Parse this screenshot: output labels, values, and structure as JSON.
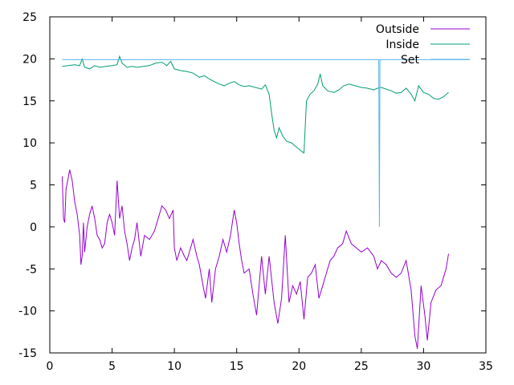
{
  "chart_data": {
    "type": "line",
    "xlim": [
      0,
      35
    ],
    "ylim": [
      -15,
      25
    ],
    "xticks": [
      0,
      5,
      10,
      15,
      20,
      25,
      30,
      35
    ],
    "yticks": [
      -15,
      -10,
      -5,
      0,
      5,
      10,
      15,
      20,
      25
    ],
    "grid": false,
    "legend_position": "top-right",
    "series": [
      {
        "name": "Outside",
        "color": "#9400d3",
        "points": [
          [
            1.0,
            6.0
          ],
          [
            1.1,
            1.0
          ],
          [
            1.2,
            0.5
          ],
          [
            1.3,
            4.5
          ],
          [
            1.5,
            6.0
          ],
          [
            1.6,
            6.8
          ],
          [
            1.8,
            5.5
          ],
          [
            2.0,
            3.0
          ],
          [
            2.2,
            1.5
          ],
          [
            2.4,
            -1.0
          ],
          [
            2.5,
            -4.5
          ],
          [
            2.6,
            -3.5
          ],
          [
            2.7,
            0.5
          ],
          [
            2.8,
            -3.0
          ],
          [
            3.0,
            0.0
          ],
          [
            3.2,
            1.5
          ],
          [
            3.4,
            2.5
          ],
          [
            3.6,
            1.0
          ],
          [
            3.8,
            -1.0
          ],
          [
            4.0,
            -1.5
          ],
          [
            4.2,
            -2.5
          ],
          [
            4.4,
            -2.0
          ],
          [
            4.6,
            0.5
          ],
          [
            4.8,
            1.5
          ],
          [
            5.0,
            0.5
          ],
          [
            5.2,
            -1.0
          ],
          [
            5.4,
            5.5
          ],
          [
            5.6,
            1.0
          ],
          [
            5.8,
            2.5
          ],
          [
            6.0,
            -0.5
          ],
          [
            6.2,
            -2.0
          ],
          [
            6.4,
            -4.0
          ],
          [
            6.6,
            -2.5
          ],
          [
            6.8,
            -1.5
          ],
          [
            7.0,
            0.5
          ],
          [
            7.3,
            -3.5
          ],
          [
            7.6,
            -1.0
          ],
          [
            8.0,
            -1.5
          ],
          [
            8.4,
            -0.5
          ],
          [
            8.8,
            1.5
          ],
          [
            9.0,
            2.5
          ],
          [
            9.3,
            2.0
          ],
          [
            9.6,
            1.0
          ],
          [
            9.9,
            2.0
          ],
          [
            10.0,
            -2.5
          ],
          [
            10.2,
            -4.0
          ],
          [
            10.5,
            -2.5
          ],
          [
            10.8,
            -3.5
          ],
          [
            11.0,
            -4.0
          ],
          [
            11.3,
            -2.5
          ],
          [
            11.5,
            -1.5
          ],
          [
            11.8,
            -3.5
          ],
          [
            12.0,
            -4.5
          ],
          [
            12.3,
            -7.0
          ],
          [
            12.5,
            -8.5
          ],
          [
            12.8,
            -5.0
          ],
          [
            13.0,
            -9.0
          ],
          [
            13.3,
            -5.0
          ],
          [
            13.6,
            -3.5
          ],
          [
            13.9,
            -1.5
          ],
          [
            14.2,
            -3.0
          ],
          [
            14.5,
            -1.0
          ],
          [
            14.8,
            2.0
          ],
          [
            15.0,
            0.5
          ],
          [
            15.2,
            -2.0
          ],
          [
            15.4,
            -4.0
          ],
          [
            15.6,
            -5.5
          ],
          [
            16.0,
            -5.0
          ],
          [
            16.3,
            -8.0
          ],
          [
            16.6,
            -10.5
          ],
          [
            17.0,
            -3.5
          ],
          [
            17.3,
            -8.0
          ],
          [
            17.6,
            -3.5
          ],
          [
            18.0,
            -9.0
          ],
          [
            18.3,
            -11.5
          ],
          [
            18.6,
            -8.5
          ],
          [
            18.9,
            -1.0
          ],
          [
            19.2,
            -9.0
          ],
          [
            19.5,
            -7.0
          ],
          [
            19.8,
            -8.0
          ],
          [
            20.1,
            -6.5
          ],
          [
            20.4,
            -11.0
          ],
          [
            20.7,
            -6.0
          ],
          [
            21.0,
            -5.5
          ],
          [
            21.3,
            -4.5
          ],
          [
            21.6,
            -8.5
          ],
          [
            21.9,
            -7.0
          ],
          [
            22.2,
            -5.5
          ],
          [
            22.5,
            -4.0
          ],
          [
            22.8,
            -3.5
          ],
          [
            23.1,
            -2.5
          ],
          [
            23.5,
            -2.0
          ],
          [
            23.8,
            -0.5
          ],
          [
            24.2,
            -2.0
          ],
          [
            24.6,
            -2.5
          ],
          [
            25.0,
            -3.0
          ],
          [
            25.5,
            -2.5
          ],
          [
            26.0,
            -3.5
          ],
          [
            26.3,
            -5.0
          ],
          [
            26.6,
            -4.0
          ],
          [
            27.0,
            -4.5
          ],
          [
            27.4,
            -5.5
          ],
          [
            27.8,
            -6.0
          ],
          [
            28.2,
            -5.5
          ],
          [
            28.6,
            -4.0
          ],
          [
            29.0,
            -7.5
          ],
          [
            29.3,
            -13.0
          ],
          [
            29.5,
            -14.5
          ],
          [
            29.8,
            -7.0
          ],
          [
            30.1,
            -10.5
          ],
          [
            30.3,
            -13.5
          ],
          [
            30.6,
            -9.0
          ],
          [
            31.0,
            -7.5
          ],
          [
            31.4,
            -7.0
          ],
          [
            31.8,
            -5.0
          ],
          [
            32.0,
            -3.2
          ]
        ]
      },
      {
        "name": "Inside",
        "color": "#009e73",
        "points": [
          [
            1.0,
            19.1
          ],
          [
            1.5,
            19.2
          ],
          [
            2.0,
            19.3
          ],
          [
            2.4,
            19.2
          ],
          [
            2.6,
            20.0
          ],
          [
            2.8,
            19.0
          ],
          [
            3.2,
            18.8
          ],
          [
            3.6,
            19.2
          ],
          [
            4.0,
            19.0
          ],
          [
            4.5,
            19.1
          ],
          [
            5.0,
            19.2
          ],
          [
            5.4,
            19.3
          ],
          [
            5.6,
            20.3
          ],
          [
            5.8,
            19.5
          ],
          [
            6.2,
            19.0
          ],
          [
            6.6,
            19.1
          ],
          [
            7.0,
            19.0
          ],
          [
            7.5,
            19.1
          ],
          [
            8.0,
            19.2
          ],
          [
            8.5,
            19.5
          ],
          [
            9.0,
            19.6
          ],
          [
            9.4,
            19.2
          ],
          [
            9.7,
            19.7
          ],
          [
            10.0,
            18.8
          ],
          [
            10.5,
            18.6
          ],
          [
            11.0,
            18.5
          ],
          [
            11.5,
            18.3
          ],
          [
            12.0,
            17.8
          ],
          [
            12.4,
            18.0
          ],
          [
            12.8,
            17.6
          ],
          [
            13.2,
            17.3
          ],
          [
            13.6,
            17.0
          ],
          [
            14.0,
            16.8
          ],
          [
            14.4,
            17.1
          ],
          [
            14.8,
            17.3
          ],
          [
            15.2,
            16.9
          ],
          [
            15.6,
            16.7
          ],
          [
            16.0,
            16.8
          ],
          [
            16.5,
            16.6
          ],
          [
            17.0,
            16.4
          ],
          [
            17.3,
            16.9
          ],
          [
            17.6,
            15.8
          ],
          [
            17.8,
            13.5
          ],
          [
            18.0,
            11.5
          ],
          [
            18.2,
            10.6
          ],
          [
            18.4,
            11.8
          ],
          [
            18.7,
            10.8
          ],
          [
            19.0,
            10.2
          ],
          [
            19.4,
            10.0
          ],
          [
            19.8,
            9.5
          ],
          [
            20.2,
            9.0
          ],
          [
            20.4,
            8.8
          ],
          [
            20.6,
            15.0
          ],
          [
            20.9,
            15.8
          ],
          [
            21.2,
            16.2
          ],
          [
            21.5,
            17.0
          ],
          [
            21.7,
            18.2
          ],
          [
            21.9,
            16.8
          ],
          [
            22.3,
            16.2
          ],
          [
            22.8,
            16.0
          ],
          [
            23.2,
            16.3
          ],
          [
            23.6,
            16.8
          ],
          [
            24.0,
            17.0
          ],
          [
            24.5,
            16.8
          ],
          [
            25.0,
            16.6
          ],
          [
            25.5,
            16.5
          ],
          [
            26.0,
            16.3
          ],
          [
            26.3,
            16.5
          ],
          [
            26.6,
            16.6
          ],
          [
            27.0,
            16.4
          ],
          [
            27.4,
            16.2
          ],
          [
            27.8,
            15.9
          ],
          [
            28.2,
            16.0
          ],
          [
            28.6,
            16.5
          ],
          [
            29.0,
            15.8
          ],
          [
            29.3,
            15.0
          ],
          [
            29.6,
            16.8
          ],
          [
            30.0,
            16.0
          ],
          [
            30.4,
            15.8
          ],
          [
            30.8,
            15.3
          ],
          [
            31.2,
            15.2
          ],
          [
            31.6,
            15.5
          ],
          [
            32.0,
            16.0
          ]
        ]
      },
      {
        "name": "Set",
        "color": "#56b4e9",
        "points": [
          [
            1.0,
            19.9
          ],
          [
            26.4,
            19.9
          ],
          [
            26.45,
            0.0
          ],
          [
            26.5,
            19.9
          ],
          [
            33.7,
            19.9
          ]
        ]
      }
    ]
  }
}
